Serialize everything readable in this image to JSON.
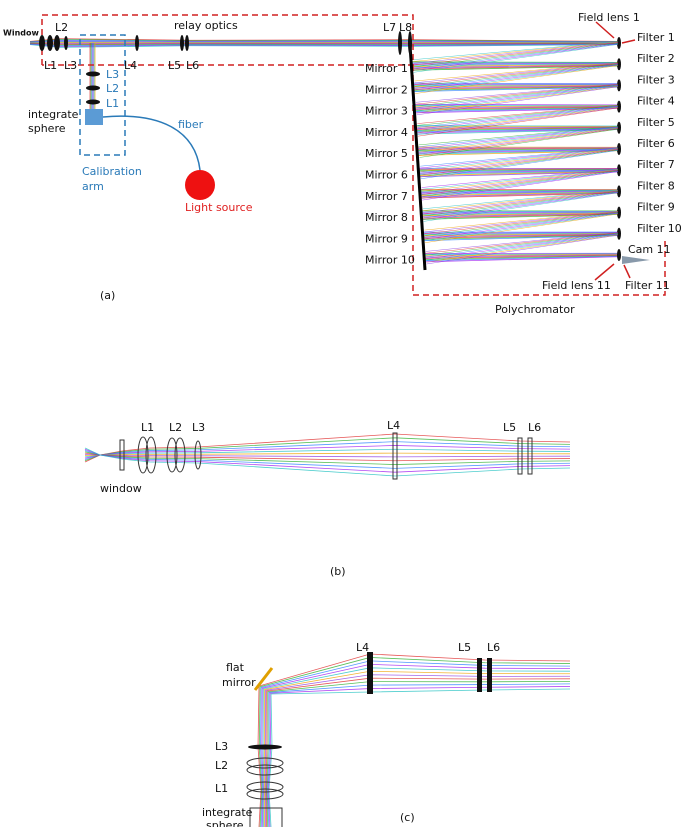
{
  "panel_a": {
    "window": "Window",
    "lens_labels": [
      "L2",
      "L1",
      "L3",
      "L4",
      "L5",
      "L6",
      "L7",
      "L8"
    ],
    "relay_optics": "relay optics",
    "calibration_lenses": [
      "L3",
      "L2",
      "L1"
    ],
    "integrate_sphere": [
      "integrate",
      "sphere"
    ],
    "fiber": "fiber",
    "calibration_arm": [
      "Calibration",
      "arm"
    ],
    "light_source": "Light source",
    "field_lens_1": "Field lens 1",
    "filters": [
      "Filter 1",
      "Filter 2",
      "Filter 3",
      "Filter 4",
      "Filter 5",
      "Filter 6",
      "Filter 7",
      "Filter 8",
      "Filter 9",
      "Filter 10",
      "Filter 11"
    ],
    "mirrors": [
      "Mirror 1",
      "Mirror 2",
      "Mirror 3",
      "Mirror 4",
      "Mirror 5",
      "Mirror 6",
      "Mirror 7",
      "Mirror 8",
      "Mirror 9",
      "Mirror 10"
    ],
    "cam_11": "Cam 11",
    "field_lens_11": "Field lens 11",
    "polychromator": "Polychromator",
    "caption": "(a)"
  },
  "panel_b": {
    "lens_labels": [
      "L1",
      "L2",
      "L3",
      "L4",
      "L5",
      "L6"
    ],
    "window": "window",
    "caption": "(b)"
  },
  "panel_c": {
    "lens_labels": [
      "L4",
      "L5",
      "L6"
    ],
    "flat_mirror": [
      "flat",
      "mirror"
    ],
    "calibration_lenses": [
      "L3",
      "L2",
      "L1"
    ],
    "integrate_sphere": [
      "integrate",
      "sphere"
    ],
    "caption": "(c)"
  }
}
